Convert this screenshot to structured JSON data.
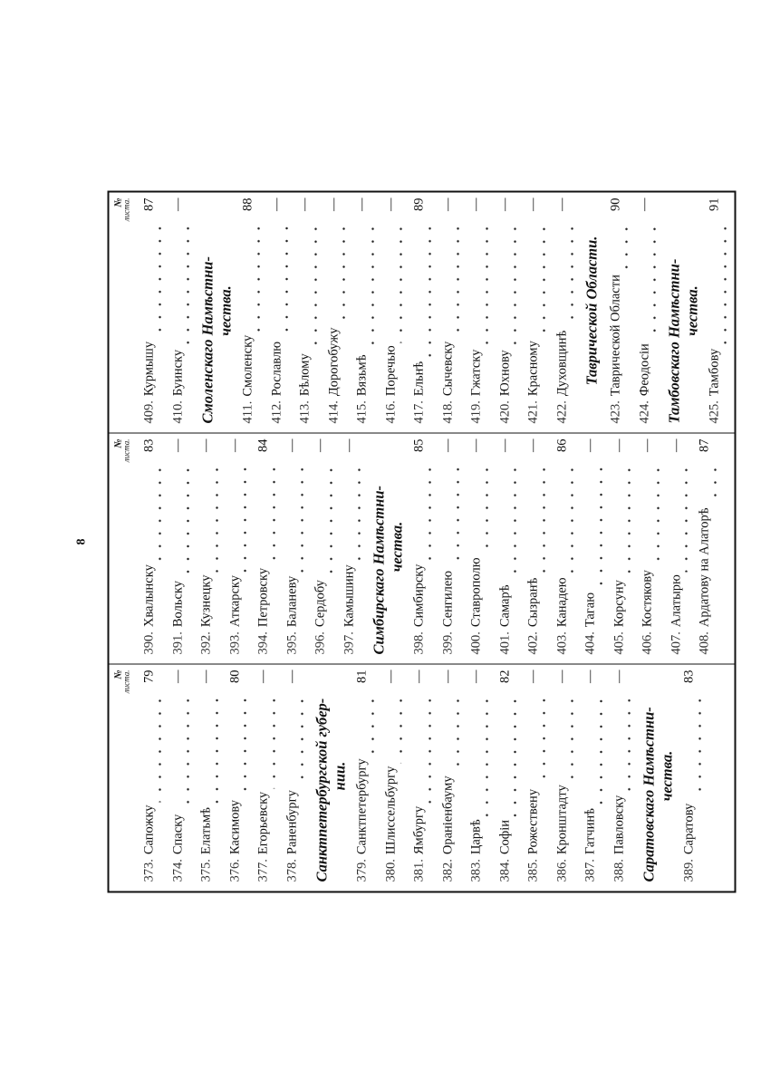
{
  "page_number": "8",
  "column_header": {
    "symbol": "№",
    "label": "листа."
  },
  "columns": [
    [
      {
        "num": "373.",
        "name": "Сапожку",
        "page": "79"
      },
      {
        "num": "374.",
        "name": "Спаску",
        "page": "—"
      },
      {
        "num": "375.",
        "name": "Елатьмѣ",
        "page": "—"
      },
      {
        "num": "376.",
        "name": "Касимову",
        "page": "80"
      },
      {
        "num": "377.",
        "name": "Егорьевску",
        "page": "—"
      },
      {
        "num": "378.",
        "name": "Раненбургу",
        "page": "—"
      },
      {
        "heading": [
          "Санктпетербургской губер-",
          "нии."
        ]
      },
      {
        "num": "379.",
        "name": "Санктпетербургу",
        "page": "81"
      },
      {
        "num": "380.",
        "name": "Шлиссельбургу",
        "page": "—"
      },
      {
        "num": "381.",
        "name": "Ямбургу",
        "page": "—"
      },
      {
        "num": "382.",
        "name": "Ораніенбауму",
        "page": "—"
      },
      {
        "num": "383.",
        "name": "Царвѣ",
        "page": "—"
      },
      {
        "num": "384.",
        "name": "Софіи",
        "page": "82"
      },
      {
        "num": "385.",
        "name": "Рожествену",
        "page": "—"
      },
      {
        "num": "386.",
        "name": "Кронштадту",
        "page": "—"
      },
      {
        "num": "387.",
        "name": "Гатчинѣ",
        "page": "—"
      },
      {
        "num": "388.",
        "name": "Павловску",
        "page": "—"
      },
      {
        "heading": [
          "Саратовскаго Намѣстни-",
          "чества."
        ]
      },
      {
        "num": "389.",
        "name": "Саратову",
        "page": "83"
      }
    ],
    [
      {
        "num": "390.",
        "name": "Хвалынску",
        "page": "83"
      },
      {
        "num": "391.",
        "name": "Вольску",
        "page": "—"
      },
      {
        "num": "392.",
        "name": "Кузнецку",
        "page": "—"
      },
      {
        "num": "393.",
        "name": "Аткарску",
        "page": "—"
      },
      {
        "num": "394.",
        "name": "Петровску",
        "page": "84"
      },
      {
        "num": "395.",
        "name": "Баланеву",
        "page": "—"
      },
      {
        "num": "396.",
        "name": "Сердобу",
        "page": "—"
      },
      {
        "num": "397.",
        "name": "Камышину",
        "page": "—"
      },
      {
        "heading": [
          "Симбирскаго Намѣстни-",
          "чества."
        ]
      },
      {
        "num": "398.",
        "name": "Симбирску",
        "page": "85"
      },
      {
        "num": "399.",
        "name": "Сенгилею",
        "page": "—"
      },
      {
        "num": "400.",
        "name": "Ставрополю",
        "page": "—"
      },
      {
        "num": "401.",
        "name": "Самарѣ",
        "page": "—"
      },
      {
        "num": "402.",
        "name": "Сызранѣ",
        "page": "—"
      },
      {
        "num": "403.",
        "name": "Канадею",
        "page": "86"
      },
      {
        "num": "404.",
        "name": "Тагаю",
        "page": "—"
      },
      {
        "num": "405.",
        "name": "Корсуну",
        "page": "—"
      },
      {
        "num": "406.",
        "name": "Костякову",
        "page": "—"
      },
      {
        "num": "407.",
        "name": "Алатырю",
        "page": "—"
      },
      {
        "num": "408.",
        "name": "Ардатову на Алаторѣ",
        "page": "87"
      }
    ],
    [
      {
        "num": "409.",
        "name": "Курмышу",
        "page": "87"
      },
      {
        "num": "410.",
        "name": "Буинску",
        "page": "—"
      },
      {
        "heading": [
          "Смоленскаго Намѣстни-",
          "чества."
        ]
      },
      {
        "num": "411.",
        "name": "Смоленску",
        "page": "88"
      },
      {
        "num": "412.",
        "name": "Рославлю",
        "page": "—"
      },
      {
        "num": "413.",
        "name": "Бѣлому",
        "page": "—"
      },
      {
        "num": "414.",
        "name": "Дорогобужу",
        "page": "—"
      },
      {
        "num": "415.",
        "name": "Вязьмѣ",
        "page": "—"
      },
      {
        "num": "416.",
        "name": "Поречью",
        "page": "—"
      },
      {
        "num": "417.",
        "name": "Ельнѣ",
        "page": "89"
      },
      {
        "num": "418.",
        "name": "Сычевску",
        "page": "—"
      },
      {
        "num": "419.",
        "name": "Гжатску",
        "page": "—"
      },
      {
        "num": "420.",
        "name": "Юхнову",
        "page": "—"
      },
      {
        "num": "421.",
        "name": "Красному",
        "page": "—"
      },
      {
        "num": "422.",
        "name": "Духовщинѣ",
        "page": "—"
      },
      {
        "heading": [
          "Таврической Области."
        ]
      },
      {
        "num": "423.",
        "name": "Таврической Области",
        "page": "90"
      },
      {
        "num": "424.",
        "name": "Феодосіи",
        "page": "—"
      },
      {
        "heading": [
          "Тамбовскаго Намѣстни-",
          "чества."
        ]
      },
      {
        "num": "425.",
        "name": "Тамбову",
        "page": "91"
      }
    ]
  ]
}
